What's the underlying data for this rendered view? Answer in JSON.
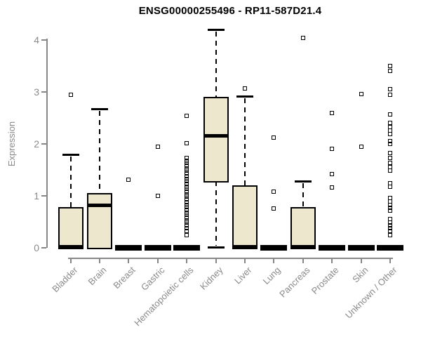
{
  "title": "ENSG00000255496 - RP11-587D21.4",
  "colors": {
    "box_fill": "#EDE7CE",
    "box_stroke": "#000000",
    "axis": "#878787",
    "tick_label": "#8a8a8a",
    "title": "#000000",
    "background": "#ffffff"
  },
  "chart_data": {
    "type": "boxplot",
    "title": "ENSG00000255496 - RP11-587D21.4",
    "xlabel": "",
    "ylabel": "Expression",
    "ylim": [
      0,
      4
    ],
    "yticks": [
      0,
      1,
      2,
      3,
      4
    ],
    "grid": false,
    "legend": false,
    "categories": [
      "Bladder",
      "Brain",
      "Breast",
      "Gastric",
      "Hematopoietic cells",
      "Kidney",
      "Liver",
      "Lung",
      "Pancreas",
      "Prostate",
      "Skin",
      "Unknown / Other"
    ],
    "series": [
      {
        "name": "Bladder",
        "collapsed": false,
        "q1": 0,
        "median": 0.03,
        "q3": 0.78,
        "whisker_low": null,
        "whisker_high": 1.8,
        "outliers": [
          2.95
        ]
      },
      {
        "name": "Brain",
        "collapsed": false,
        "q1": 0,
        "median": 0.82,
        "q3": 1.05,
        "whisker_low": null,
        "whisker_high": 2.67,
        "outliers": []
      },
      {
        "name": "Breast",
        "collapsed": true,
        "q1": 0,
        "median": 0,
        "q3": 0,
        "whisker_low": null,
        "whisker_high": null,
        "outliers": [
          1.31
        ]
      },
      {
        "name": "Gastric",
        "collapsed": true,
        "q1": 0,
        "median": 0,
        "q3": 0,
        "whisker_low": null,
        "whisker_high": null,
        "outliers": [
          1.95,
          1.0
        ]
      },
      {
        "name": "Hematopoietic cells",
        "collapsed": true,
        "q1": 0,
        "median": 0,
        "q3": 0,
        "whisker_low": null,
        "whisker_high": null,
        "outliers": [
          2.54,
          2.02,
          1.73,
          1.68,
          1.63,
          1.58,
          1.53,
          1.48,
          1.43,
          1.38,
          1.33,
          1.28,
          1.23,
          1.18,
          1.13,
          1.08,
          1.03,
          0.98,
          0.93,
          0.88,
          0.83,
          0.78,
          0.73,
          0.68,
          0.63,
          0.58,
          0.53,
          0.48,
          0.43,
          0.38,
          0.33,
          0.24
        ]
      },
      {
        "name": "Kidney",
        "collapsed": false,
        "q1": 1.28,
        "median": 2.16,
        "q3": 2.9,
        "whisker_low": 0.01,
        "whisker_high": 4.2,
        "outliers": []
      },
      {
        "name": "Liver",
        "collapsed": false,
        "q1": 0,
        "median": 0.03,
        "q3": 1.2,
        "whisker_low": null,
        "whisker_high": 2.92,
        "outliers": [
          3.07
        ]
      },
      {
        "name": "Lung",
        "collapsed": true,
        "q1": 0,
        "median": 0,
        "q3": 0,
        "whisker_low": null,
        "whisker_high": null,
        "outliers": [
          2.12,
          1.08,
          0.76
        ]
      },
      {
        "name": "Pancreas",
        "collapsed": false,
        "q1": 0,
        "median": 0.03,
        "q3": 0.78,
        "whisker_low": null,
        "whisker_high": 1.29,
        "outliers": [
          4.04
        ]
      },
      {
        "name": "Prostate",
        "collapsed": true,
        "q1": 0,
        "median": 0,
        "q3": 0,
        "whisker_low": null,
        "whisker_high": null,
        "outliers": [
          2.6,
          1.9,
          1.42,
          1.16
        ]
      },
      {
        "name": "Skin",
        "collapsed": true,
        "q1": 0,
        "median": 0,
        "q3": 0,
        "whisker_low": null,
        "whisker_high": null,
        "outliers": [
          2.96,
          1.95
        ]
      },
      {
        "name": "Unknown / Other",
        "collapsed": true,
        "q1": 0,
        "median": 0,
        "q3": 0,
        "whisker_low": null,
        "whisker_high": null,
        "outliers": [
          3.5,
          3.41,
          3.05,
          2.95,
          2.57,
          2.41,
          2.33,
          2.26,
          2.19,
          2.05,
          2.0,
          1.82,
          1.73,
          1.63,
          1.56,
          1.49,
          1.24,
          1.17,
          0.96,
          0.89,
          0.83,
          0.77,
          0.72,
          0.55,
          0.49,
          0.43,
          0.38,
          0.33,
          0.24
        ]
      }
    ]
  }
}
